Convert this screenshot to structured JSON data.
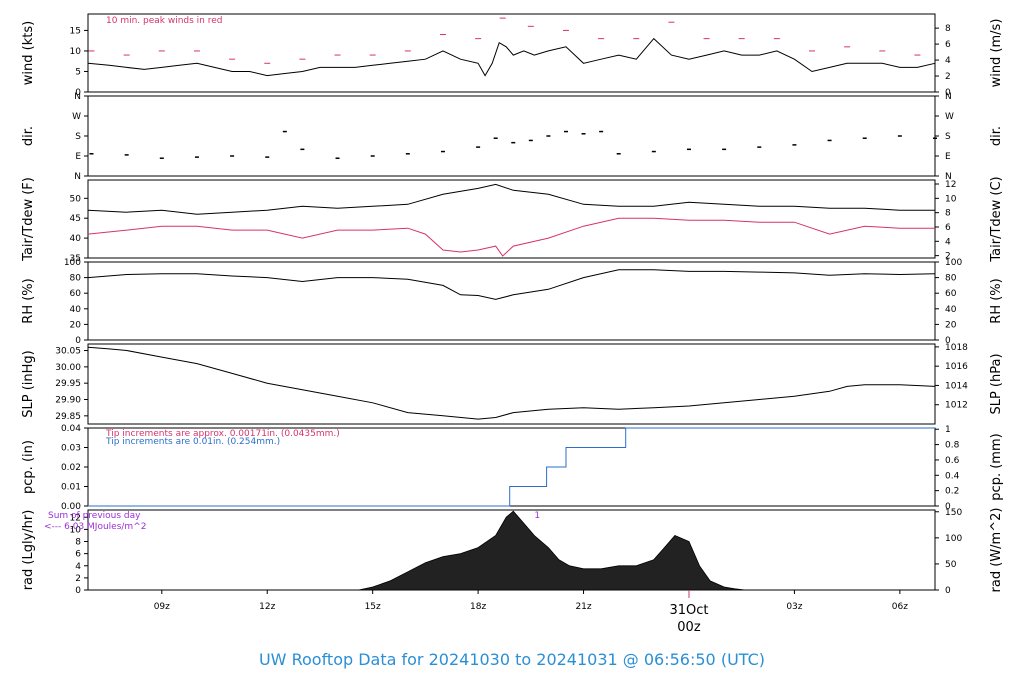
{
  "title": "UW Rooftop Data for 20241030  to  20241031 @ 06:56:50  (UTC)",
  "colors": {
    "title": "#2b8fd6",
    "red": "#d6336c",
    "blue": "#2b6fce",
    "purple": "#9b30d9",
    "line": "#000000"
  },
  "time_axis": {
    "range_hours": [
      6.9,
      31.0
    ],
    "ticks": [
      {
        "label": "09z",
        "hour": 9
      },
      {
        "label": "12z",
        "hour": 12
      },
      {
        "label": "15z",
        "hour": 15
      },
      {
        "label": "18z",
        "hour": 18
      },
      {
        "label": "21z",
        "hour": 21
      },
      {
        "label": "03z",
        "hour": 27
      },
      {
        "label": "06z",
        "hour": 30
      }
    ],
    "date_marker": {
      "label": "31Oct",
      "sublabel": "00z",
      "hour": 24
    }
  },
  "chart_data": [
    {
      "type": "line",
      "id": "wind",
      "ylabel_left": "wind (kts)",
      "ylabel_right": "wind (m/s)",
      "ylim": [
        0,
        19
      ],
      "yticks_left": [
        0,
        5,
        10,
        15
      ],
      "ylim_right": [
        0,
        9.77
      ],
      "yticks_right": [
        0,
        2,
        4,
        6,
        8
      ],
      "annotation": "10 min. peak winds in red",
      "series": [
        {
          "role": "mean",
          "x": [
            6.9,
            7.5,
            8.0,
            8.5,
            9.0,
            9.5,
            10.0,
            10.5,
            11.0,
            11.5,
            12.0,
            12.5,
            13.0,
            13.5,
            14.0,
            14.5,
            15.0,
            15.5,
            16.0,
            16.5,
            17.0,
            17.5,
            18.0,
            18.2,
            18.4,
            18.6,
            18.8,
            19.0,
            19.3,
            19.6,
            20.0,
            20.5,
            21.0,
            21.5,
            22.0,
            22.5,
            23.0,
            23.5,
            24.0,
            24.5,
            25.0,
            25.5,
            26.0,
            26.5,
            27.0,
            27.5,
            28.0,
            28.5,
            29.0,
            29.5,
            30.0,
            30.5,
            31.0
          ],
          "y": [
            7,
            6.5,
            6,
            5.5,
            6,
            6.5,
            7,
            6,
            5,
            5,
            4,
            4.5,
            5,
            6,
            6,
            6,
            6.5,
            7,
            7.5,
            8,
            10,
            8,
            7,
            4,
            7,
            12,
            11,
            9,
            10,
            9,
            10,
            11,
            7,
            8,
            9,
            8,
            13,
            9,
            8,
            9,
            10,
            9,
            9,
            10,
            8,
            5,
            6,
            7,
            7,
            7,
            6,
            6,
            7
          ]
        },
        {
          "role": "peak",
          "x": [
            7.0,
            8.0,
            9.0,
            10.0,
            11.0,
            12.0,
            13.0,
            14.0,
            15.0,
            16.0,
            17.0,
            18.0,
            18.7,
            19.5,
            20.5,
            21.5,
            22.5,
            23.5,
            24.5,
            25.5,
            26.5,
            27.5,
            28.5,
            29.5,
            30.5
          ],
          "y": [
            10,
            9,
            10,
            10,
            8,
            7,
            8,
            9,
            9,
            10,
            14,
            13,
            18,
            16,
            15,
            13,
            13,
            17,
            13,
            13,
            13,
            10,
            11,
            10,
            9
          ]
        }
      ]
    },
    {
      "type": "scatter",
      "id": "dir",
      "ylabel_left": "dir.",
      "ylabel_right": "dir.",
      "ylim": [
        0,
        360
      ],
      "yticks_left": [
        {
          "v": 0,
          "label": "N"
        },
        {
          "v": 90,
          "label": "E"
        },
        {
          "v": 180,
          "label": "S"
        },
        {
          "v": 270,
          "label": "W"
        },
        {
          "v": 360,
          "label": "N"
        }
      ],
      "series": [
        {
          "x": [
            7.0,
            8.0,
            9.0,
            10.0,
            11.0,
            12.0,
            12.5,
            13.0,
            14.0,
            15.0,
            16.0,
            17.0,
            18.0,
            18.5,
            19.0,
            19.5,
            20.0,
            20.5,
            21.0,
            21.5,
            22.0,
            23.0,
            24.0,
            25.0,
            26.0,
            27.0,
            28.0,
            29.0,
            30.0,
            31.0
          ],
          "y": [
            100,
            95,
            80,
            85,
            90,
            85,
            200,
            120,
            80,
            90,
            100,
            110,
            130,
            170,
            150,
            160,
            180,
            200,
            190,
            200,
            100,
            110,
            120,
            120,
            130,
            140,
            160,
            170,
            180,
            170
          ]
        }
      ]
    },
    {
      "type": "line",
      "id": "temp",
      "ylabel_left": "Tair/Tdew (F)",
      "ylabel_right": "Tair/Tdew (C)",
      "ylim": [
        35,
        54.6
      ],
      "yticks_left": [
        35,
        40,
        45,
        50
      ],
      "ylim_right": [
        1.67,
        12.56
      ],
      "yticks_right": [
        2,
        4,
        6,
        8,
        10,
        12
      ],
      "series": [
        {
          "role": "air",
          "x": [
            6.9,
            8.0,
            9.0,
            10.0,
            11.0,
            12.0,
            13.0,
            14.0,
            15.0,
            16.0,
            17.0,
            18.0,
            18.5,
            19.0,
            20.0,
            21.0,
            22.0,
            23.0,
            24.0,
            25.0,
            26.0,
            27.0,
            28.0,
            29.0,
            30.0,
            31.0
          ],
          "y": [
            47,
            46.5,
            47,
            46,
            46.5,
            47,
            48,
            47.5,
            48,
            48.5,
            51,
            52.5,
            53.5,
            52,
            51,
            48.5,
            48,
            48,
            49,
            48.5,
            48,
            48,
            47.5,
            47.5,
            47,
            47
          ]
        },
        {
          "role": "dew",
          "x": [
            6.9,
            8.0,
            9.0,
            10.0,
            11.0,
            12.0,
            13.0,
            14.0,
            15.0,
            16.0,
            16.5,
            17.0,
            17.5,
            18.0,
            18.5,
            18.7,
            19.0,
            20.0,
            21.0,
            22.0,
            23.0,
            24.0,
            25.0,
            26.0,
            27.0,
            28.0,
            29.0,
            30.0,
            31.0
          ],
          "y": [
            41,
            42,
            43,
            43,
            42,
            42,
            40,
            42,
            42,
            42.5,
            41,
            37,
            36.5,
            37,
            38,
            35.5,
            38,
            40,
            43,
            45,
            45,
            44.5,
            44.5,
            44,
            44,
            41,
            43,
            42.5,
            42.5
          ]
        }
      ]
    },
    {
      "type": "line",
      "id": "rh",
      "ylabel_left": "RH (%)",
      "ylabel_right": "RH (%)",
      "ylim": [
        0,
        100
      ],
      "yticks_left": [
        0,
        20,
        40,
        60,
        80,
        100
      ],
      "yticks_right": [
        0,
        20,
        40,
        60,
        80,
        100
      ],
      "series": [
        {
          "x": [
            6.9,
            8.0,
            9.0,
            10.0,
            11.0,
            12.0,
            13.0,
            14.0,
            15.0,
            16.0,
            17.0,
            17.5,
            18.0,
            18.5,
            19.0,
            20.0,
            21.0,
            22.0,
            23.0,
            24.0,
            25.0,
            26.0,
            27.0,
            28.0,
            29.0,
            30.0,
            31.0
          ],
          "y": [
            80,
            84,
            85,
            85,
            82,
            80,
            75,
            80,
            80,
            78,
            70,
            58,
            57,
            52,
            58,
            65,
            80,
            90,
            90,
            88,
            88,
            87,
            86,
            83,
            85,
            84,
            85
          ]
        }
      ]
    },
    {
      "type": "line",
      "id": "slp",
      "ylabel_left": "SLP (inHg)",
      "ylabel_right": "SLP (hPa)",
      "ylim": [
        29.825,
        30.07
      ],
      "yticks_left": [
        29.85,
        29.9,
        29.95,
        30.0,
        30.05
      ],
      "ylim_right": [
        1010.0,
        1018.3
      ],
      "yticks_right": [
        1012,
        1014,
        1016,
        1018
      ],
      "series": [
        {
          "x": [
            6.9,
            7.5,
            8.0,
            9.0,
            10.0,
            11.0,
            12.0,
            13.0,
            14.0,
            15.0,
            16.0,
            17.0,
            18.0,
            18.5,
            19.0,
            20.0,
            21.0,
            22.0,
            23.0,
            24.0,
            25.0,
            26.0,
            27.0,
            28.0,
            28.5,
            29.0,
            30.0,
            31.0
          ],
          "y": [
            30.06,
            30.055,
            30.05,
            30.03,
            30.01,
            29.98,
            29.95,
            29.93,
            29.91,
            29.89,
            29.86,
            29.85,
            29.84,
            29.845,
            29.86,
            29.87,
            29.875,
            29.87,
            29.875,
            29.88,
            29.89,
            29.9,
            29.91,
            29.925,
            29.94,
            29.945,
            29.945,
            29.94
          ]
        }
      ]
    },
    {
      "type": "line",
      "id": "pcp",
      "ylabel_left": "pcp. (in)",
      "ylabel_right": "pcp. (mm)",
      "ylim": [
        0,
        0.04
      ],
      "yticks_left": [
        0.0,
        0.01,
        0.02,
        0.03,
        0.04
      ],
      "ylim_right": [
        0,
        1.016
      ],
      "yticks_right": [
        0,
        0.2,
        0.4,
        0.6,
        0.8,
        1
      ],
      "annotations": [
        "Tip increments are approx. 0.00171in. (0.0435mm.)",
        "Tip increments are 0.01in. (0.254mm.)"
      ],
      "series": [
        {
          "step": true,
          "x": [
            6.9,
            18.9,
            18.9,
            19.95,
            19.95,
            20.5,
            20.5,
            21.1,
            21.1,
            22.2,
            22.2,
            31.0
          ],
          "y": [
            0,
            0,
            0.01,
            0.01,
            0.02,
            0.02,
            0.03,
            0.03,
            0.03,
            0.03,
            0.04,
            0.04
          ]
        }
      ]
    },
    {
      "type": "area",
      "id": "rad",
      "ylabel_left": "rad (Lgly/hr)",
      "ylabel_right": "rad (W/m^2)",
      "ylim": [
        0,
        13.2
      ],
      "yticks_left": [
        0,
        2,
        4,
        6,
        8,
        10,
        12
      ],
      "ylim_right": [
        0,
        153.4
      ],
      "yticks_right": [
        0,
        50,
        100,
        150
      ],
      "annotations": [
        "Sum of previous day",
        "<--- 6.03 MJoules/m^2",
        "1"
      ],
      "series": [
        {
          "x": [
            14.6,
            15.0,
            15.5,
            16.0,
            16.5,
            17.0,
            17.5,
            18.0,
            18.5,
            18.8,
            19.0,
            19.3,
            19.6,
            20.0,
            20.3,
            20.6,
            21.0,
            21.5,
            22.0,
            22.5,
            23.0,
            23.3,
            23.6,
            24.0,
            24.3,
            24.6,
            25.0,
            25.3,
            25.6
          ],
          "y": [
            0,
            0.5,
            1.5,
            3,
            4.5,
            5.5,
            6,
            7,
            9,
            12,
            13,
            11,
            9,
            7,
            5,
            4,
            3.5,
            3.5,
            4,
            4,
            5,
            7,
            9,
            8,
            4,
            1.5,
            0.5,
            0.2,
            0
          ]
        }
      ]
    }
  ]
}
